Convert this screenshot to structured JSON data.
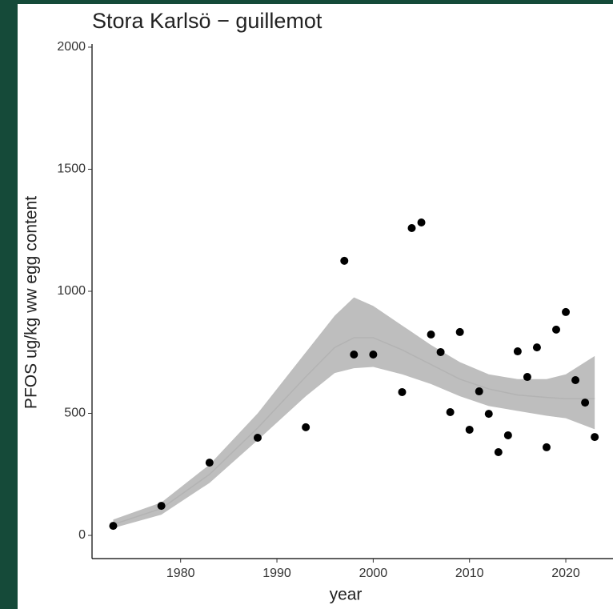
{
  "chart_data": {
    "type": "scatter",
    "title": "Stora Karlsö − guillemot",
    "x_label": "year",
    "y_label": "PFOS ug/kg ww egg content",
    "x": [
      1973,
      1978,
      1983,
      1988,
      1993,
      1997,
      1998,
      2000,
      2003,
      2004,
      2005,
      2006,
      2007,
      2008,
      2009,
      2010,
      2011,
      2012,
      2013,
      2014,
      2015,
      2016,
      2017,
      2018,
      2019,
      2020,
      2021,
      2022,
      2023
    ],
    "values": [
      39,
      121,
      298,
      400,
      443,
      1125,
      741,
      741,
      587,
      1259,
      1282,
      823,
      751,
      505,
      833,
      433,
      590,
      498,
      341,
      410,
      754,
      649,
      770,
      361,
      843,
      915,
      636,
      544,
      403
    ],
    "color": "#000000",
    "fit": {
      "color": "#b3b3b3",
      "band_color": "#bebebe",
      "x": [
        1973,
        1978,
        1983,
        1988,
        1993,
        1996,
        1998,
        2000,
        2003,
        2006,
        2009,
        2012,
        2015,
        2018,
        2020,
        2023
      ],
      "values": [
        45,
        110,
        250,
        440,
        650,
        770,
        810,
        810,
        760,
        700,
        640,
        600,
        575,
        565,
        560,
        560
      ],
      "lower": [
        30,
        85,
        215,
        390,
        570,
        665,
        685,
        690,
        660,
        620,
        570,
        530,
        510,
        490,
        480,
        435
      ],
      "upper": [
        65,
        135,
        290,
        500,
        750,
        900,
        975,
        940,
        860,
        780,
        710,
        660,
        640,
        640,
        660,
        735
      ]
    },
    "xlim": [
      1970.8,
      2024.9
    ],
    "xticks": [
      1980,
      1990,
      2000,
      2010,
      2020
    ],
    "ylim": [
      -95,
      2013
    ],
    "yticks": [
      0,
      500,
      1000,
      1500,
      2000
    ]
  }
}
